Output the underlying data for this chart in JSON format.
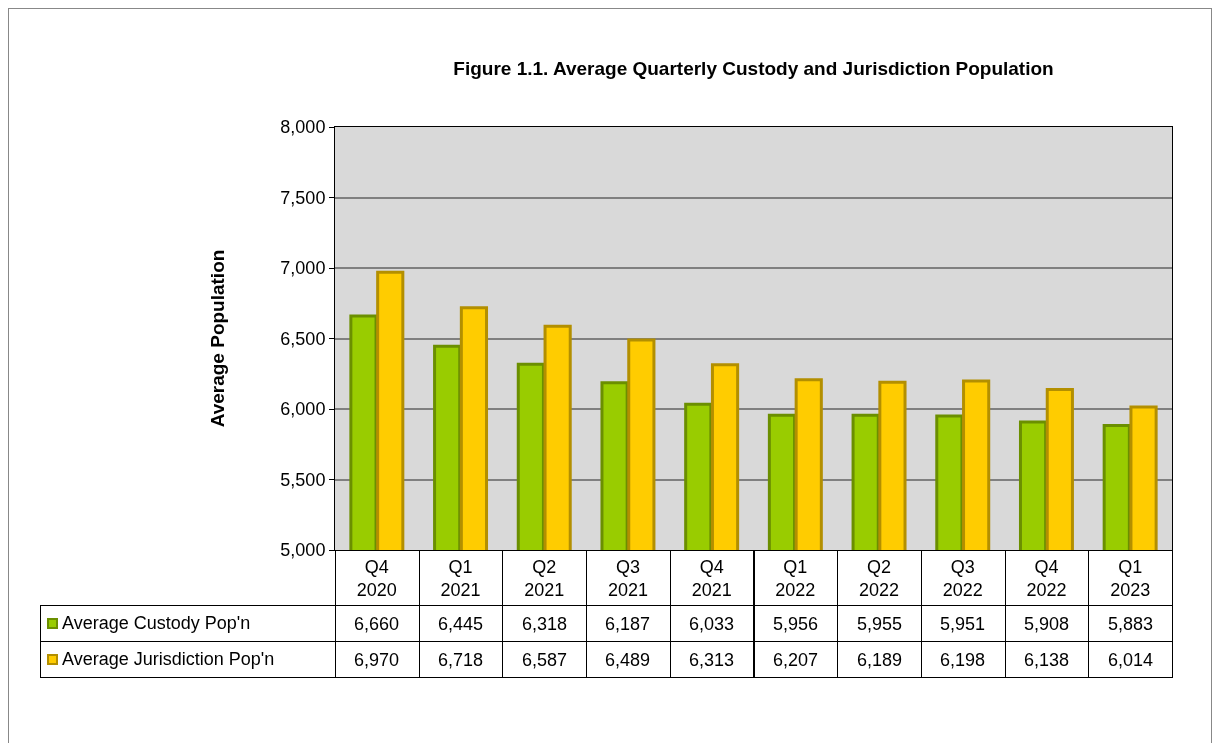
{
  "chart_data": {
    "type": "bar",
    "title": "Figure 1.1. Average Quarterly Custody and Jurisdiction Population",
    "ylabel": "Average Population",
    "categories": [
      "Q4 2020",
      "Q1 2021",
      "Q2 2021",
      "Q3 2021",
      "Q4 2021",
      "Q1 2022",
      "Q2 2022",
      "Q3 2022",
      "Q4 2022",
      "Q1 2023"
    ],
    "series": [
      {
        "name": "Average Custody Pop'n",
        "color": "#99cc00",
        "values": [
          6660,
          6445,
          6318,
          6187,
          6033,
          5956,
          5955,
          5951,
          5908,
          5883
        ],
        "value_labels": [
          "6,660",
          "6,445",
          "6,318",
          "6,187",
          "6,033",
          "5,956",
          "5,955",
          "5,951",
          "5,908",
          "5,883"
        ]
      },
      {
        "name": "Average Jurisdiction Pop'n",
        "color": "#ffcc00",
        "values": [
          6970,
          6718,
          6587,
          6489,
          6313,
          6207,
          6189,
          6198,
          6138,
          6014
        ],
        "value_labels": [
          "6,970",
          "6,718",
          "6,587",
          "6,489",
          "6,313",
          "6,207",
          "6,189",
          "6,198",
          "6,138",
          "6,014"
        ]
      }
    ],
    "ylim": [
      5000,
      8000
    ],
    "yticks": [
      {
        "value": 5000,
        "label": "5,000"
      },
      {
        "value": 5500,
        "label": "5,500"
      },
      {
        "value": 6000,
        "label": "6,000"
      },
      {
        "value": 6500,
        "label": "6,500"
      },
      {
        "value": 7000,
        "label": "7,000"
      },
      {
        "value": 7500,
        "label": "7,500"
      },
      {
        "value": 8000,
        "label": "8,000"
      }
    ],
    "grid": "y",
    "legend": "bottom"
  }
}
